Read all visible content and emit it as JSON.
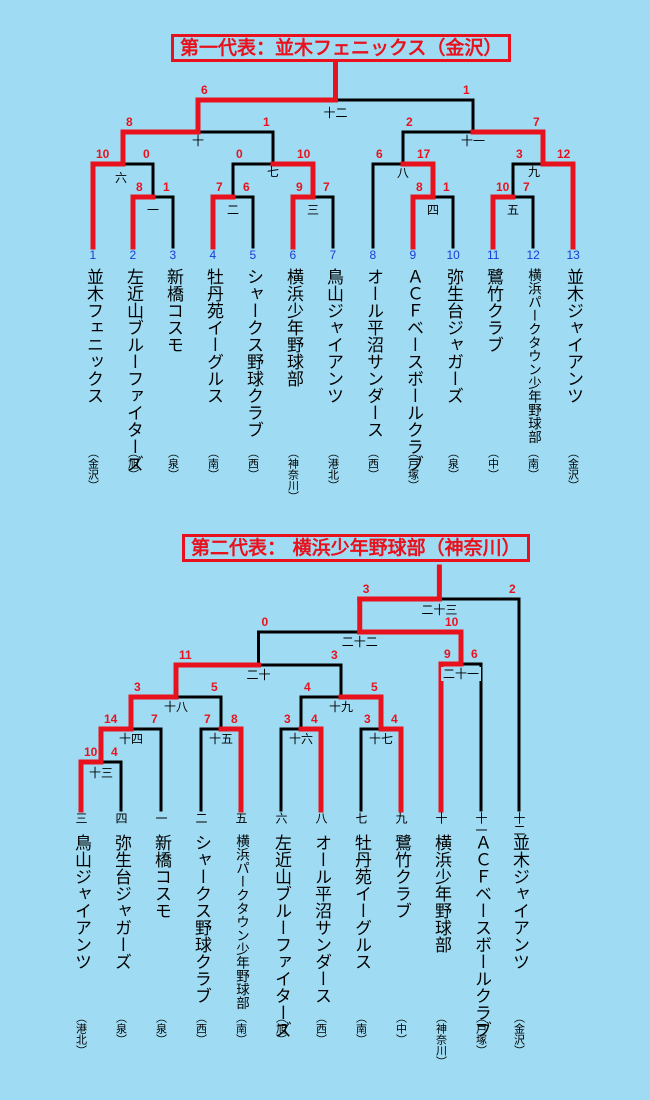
{
  "bracket1": {
    "title": "第一代表：並木フェニックス（金沢）",
    "teams": [
      {
        "seed": "1",
        "name": "並木フェニックス",
        "location": "（金沢）"
      },
      {
        "seed": "2",
        "name": "左近山ブルーファイターズ",
        "location": "（旭）"
      },
      {
        "seed": "3",
        "name": "新橋コスモ",
        "location": "（泉）"
      },
      {
        "seed": "4",
        "name": "牡丹苑イーグルス",
        "location": "（南）"
      },
      {
        "seed": "5",
        "name": "シャークス野球クラブ",
        "location": "（西）"
      },
      {
        "seed": "6",
        "name": "横浜少年野球部",
        "location": "（神奈川）"
      },
      {
        "seed": "7",
        "name": "鳥山ジャイアンツ",
        "location": "（港北）"
      },
      {
        "seed": "8",
        "name": "オール平沼サンダース",
        "location": "（西）"
      },
      {
        "seed": "9",
        "name": "ＡＣＦベースボールクラブ",
        "location": "（戸塚）"
      },
      {
        "seed": "10",
        "name": "弥生台ジャガーズ",
        "location": "（泉）"
      },
      {
        "seed": "11",
        "name": "鷺竹クラブ",
        "location": "（中）"
      },
      {
        "seed": "12",
        "name": "横浜パークタウン少年野球部",
        "location": "（南）"
      },
      {
        "seed": "13",
        "name": "並木ジャイアンツ",
        "location": "（金沢）"
      }
    ],
    "games": [
      {
        "no": "一",
        "left_score": "8",
        "right_score": "1"
      },
      {
        "no": "二",
        "left_score": "7",
        "right_score": "6"
      },
      {
        "no": "三",
        "left_score": "9",
        "right_score": "7"
      },
      {
        "no": "四",
        "left_score": "8",
        "right_score": "1"
      },
      {
        "no": "五",
        "left_score": "10",
        "right_score": "7"
      },
      {
        "no": "六",
        "left_score": "10",
        "right_score": "0"
      },
      {
        "no": "七",
        "left_score": "0",
        "right_score": "10"
      },
      {
        "no": "八",
        "left_score": "6",
        "right_score": "17"
      },
      {
        "no": "九",
        "left_score": "3",
        "right_score": "12"
      },
      {
        "no": "十",
        "left_score": "8",
        "right_score": "1"
      },
      {
        "no": "十一",
        "left_score": "2",
        "right_score": "7"
      },
      {
        "no": "十二",
        "left_score": "6",
        "right_score": "1"
      }
    ]
  },
  "bracket2": {
    "title": "第二代表： 横浜少年野球部（神奈川）",
    "teams": [
      {
        "slot": "三",
        "name": "鳥山ジャイアンツ",
        "location": "（港北）"
      },
      {
        "slot": "四",
        "name": "弥生台ジャガーズ",
        "location": "（泉）"
      },
      {
        "slot": "一",
        "name": "新橋コスモ",
        "location": "（泉）"
      },
      {
        "slot": "二",
        "name": "シャークス野球クラブ",
        "location": "（西）"
      },
      {
        "slot": "五",
        "name": "横浜パークタウン少年野球部",
        "location": "（南）"
      },
      {
        "slot": "六",
        "name": "左近山ブルーファイターズ",
        "location": "（旭）"
      },
      {
        "slot": "八",
        "name": "オール平沼サンダース",
        "location": "（西）"
      },
      {
        "slot": "七",
        "name": "牡丹苑イーグルス",
        "location": "（南）"
      },
      {
        "slot": "九",
        "name": "鷺竹クラブ",
        "location": "（中）"
      },
      {
        "slot": "十",
        "name": "横浜少年野球部",
        "location": "（神奈川）"
      },
      {
        "slot": "十一",
        "name": "ＡＣＦベースボールクラブ",
        "location": "（戸塚）"
      },
      {
        "slot": "十二",
        "name": "並木ジャイアンツ",
        "location": "（金沢）"
      }
    ],
    "games": [
      {
        "no": "十三",
        "left_score": "10",
        "right_score": "4"
      },
      {
        "no": "十四",
        "left_score": "14",
        "right_score": "7"
      },
      {
        "no": "十五",
        "left_score": "7",
        "right_score": "8"
      },
      {
        "no": "十六",
        "left_score": "3",
        "right_score": "4"
      },
      {
        "no": "十七",
        "left_score": "3",
        "right_score": "4"
      },
      {
        "no": "十八",
        "left_score": "3",
        "right_score": "5"
      },
      {
        "no": "十九",
        "left_score": "4",
        "right_score": "5"
      },
      {
        "no": "二十",
        "left_score": "11",
        "right_score": "3"
      },
      {
        "no": "二十一",
        "left_score": "9",
        "right_score": "6"
      },
      {
        "no": "二十二",
        "left_score": "0",
        "right_score": "10"
      },
      {
        "no": "二十三",
        "left_score": "3",
        "right_score": "2"
      }
    ]
  },
  "colors": {
    "background": "#9fdcf3",
    "winner_line": "#e8121e",
    "loser_line": "#000000",
    "seed_number": "#1a3bd6"
  }
}
